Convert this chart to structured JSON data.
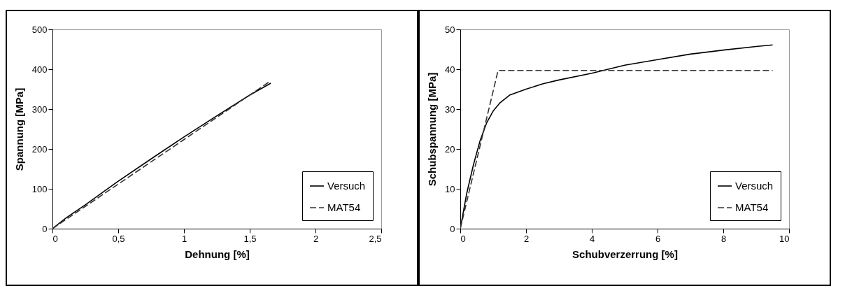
{
  "chart_data": [
    {
      "type": "line",
      "xlabel": "Dehnung [%]",
      "ylabel": "Spannung [MPa]",
      "xlim": [
        0,
        2.5
      ],
      "ylim": [
        0,
        500
      ],
      "xticks": [
        0,
        {
          "value": 0.5,
          "label": "0,5"
        },
        1,
        {
          "value": 1.5,
          "label": "1,5"
        },
        2,
        {
          "value": 2.5,
          "label": "2,5"
        }
      ],
      "yticks": [
        0,
        100,
        200,
        300,
        400,
        500
      ],
      "grid": false,
      "legend": "bottom right",
      "series": [
        {
          "name": "Versuch",
          "color": "#000000",
          "line_style": "solid",
          "x": [
            0,
            0.1,
            0.25,
            0.5,
            0.75,
            1,
            1.25,
            1.5,
            1.66
          ],
          "values": [
            0,
            26,
            60,
            119,
            175,
            230,
            283,
            335,
            365
          ]
        },
        {
          "name": "MAT54",
          "color": "#333333",
          "line_style": "dashed",
          "x": [
            0,
            1.66
          ],
          "values": [
            0,
            371
          ]
        }
      ]
    },
    {
      "type": "line",
      "xlabel": "Schubverzerrung [%]",
      "ylabel": "Schubspannung [MPa]",
      "xlim": [
        0,
        10
      ],
      "ylim": [
        0,
        50
      ],
      "xticks": [
        0,
        2,
        4,
        6,
        8,
        10
      ],
      "yticks": [
        0,
        10,
        20,
        30,
        40,
        50
      ],
      "grid": false,
      "legend": "bottom right",
      "series": [
        {
          "name": "Versuch",
          "color": "#000000",
          "line_style": "solid",
          "x": [
            0,
            0.2,
            0.4,
            0.6,
            0.8,
            1,
            1.2,
            1.5,
            2,
            2.5,
            3,
            4,
            5,
            6,
            7,
            8,
            9,
            9.5
          ],
          "values": [
            0,
            9,
            16,
            22,
            26.5,
            29.5,
            31.5,
            33.5,
            35,
            36.3,
            37.3,
            39,
            41,
            42.4,
            43.8,
            44.8,
            45.7,
            46.1
          ]
        },
        {
          "name": "MAT54",
          "color": "#333333",
          "line_style": "dashed",
          "x": [
            0,
            1.15,
            9.5
          ],
          "values": [
            0,
            39.7,
            39.7
          ]
        }
      ]
    }
  ]
}
